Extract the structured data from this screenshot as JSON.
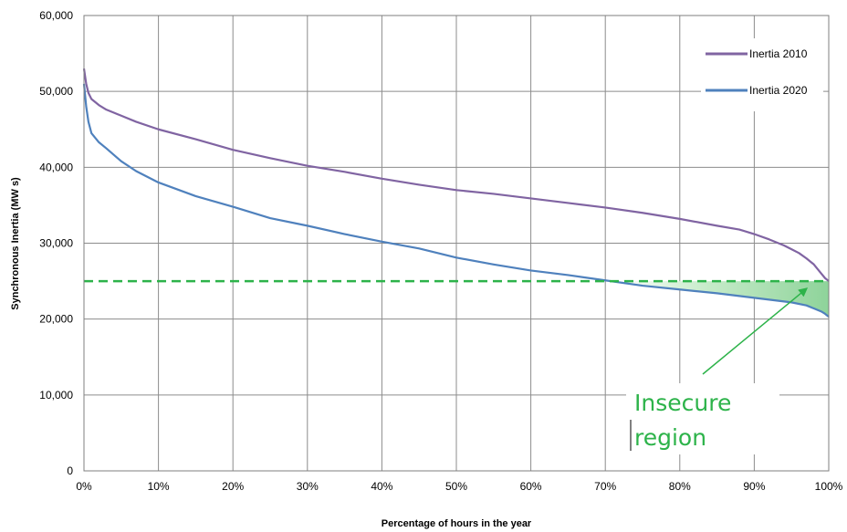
{
  "chart_data": {
    "type": "line",
    "xlabel": "Percentage of hours in the year",
    "ylabel": "Synchronous Inertia (MW s)",
    "xlim": [
      0,
      100
    ],
    "ylim": [
      0,
      60000
    ],
    "x_ticks": [
      "0%",
      "10%",
      "20%",
      "30%",
      "40%",
      "50%",
      "60%",
      "70%",
      "80%",
      "90%",
      "100%"
    ],
    "y_ticks": [
      "0",
      "10,000",
      "20,000",
      "30,000",
      "40,000",
      "50,000",
      "60,000"
    ],
    "grid": true,
    "legend_position": "top-right",
    "threshold": {
      "y": 25000,
      "color": "#2db34a",
      "style": "dashed"
    },
    "annotation": {
      "lines": [
        "Insecure",
        "region"
      ],
      "color": "#2db34a",
      "arrow_to": [
        97,
        24000
      ]
    },
    "series": [
      {
        "name": "Inertia 2010",
        "color": "#8064a2",
        "x": [
          0,
          0.3,
          0.6,
          1,
          2,
          3,
          5,
          7,
          10,
          15,
          20,
          25,
          30,
          35,
          40,
          45,
          50,
          55,
          60,
          65,
          70,
          75,
          80,
          85,
          88,
          90,
          92,
          94,
          95,
          96,
          97,
          98,
          98.5,
          99,
          99.5,
          100
        ],
        "y": [
          53000,
          51000,
          49800,
          49000,
          48200,
          47600,
          46800,
          46000,
          45000,
          43700,
          42300,
          41200,
          40200,
          39400,
          38500,
          37700,
          37000,
          36500,
          35900,
          35300,
          34700,
          34000,
          33200,
          32300,
          31800,
          31200,
          30500,
          29700,
          29200,
          28700,
          28000,
          27200,
          26600,
          26000,
          25400,
          25000
        ]
      },
      {
        "name": "Inertia 2020",
        "color": "#4f81bd",
        "x": [
          0,
          0.3,
          0.6,
          1,
          2,
          3,
          5,
          7,
          10,
          15,
          20,
          25,
          30,
          35,
          40,
          45,
          50,
          55,
          60,
          65,
          70,
          75,
          80,
          85,
          90,
          95,
          97,
          98,
          99,
          99.5,
          100
        ],
        "y": [
          51000,
          48000,
          46000,
          44500,
          43300,
          42500,
          40800,
          39500,
          38000,
          36200,
          34800,
          33300,
          32300,
          31200,
          30200,
          29300,
          28100,
          27200,
          26400,
          25800,
          25100,
          24400,
          23900,
          23400,
          22800,
          22200,
          21800,
          21400,
          21000,
          20700,
          20300
        ]
      }
    ]
  }
}
